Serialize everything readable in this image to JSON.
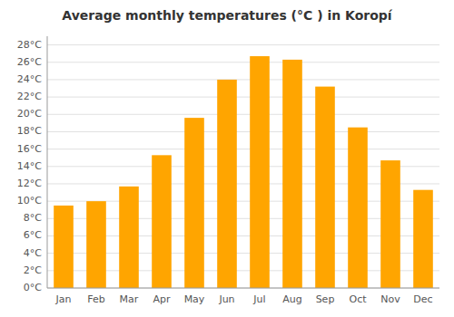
{
  "chart_data": {
    "type": "bar",
    "title": "Average monthly temperatures (°C ) in Koropí",
    "categories": [
      "Jan",
      "Feb",
      "Mar",
      "Apr",
      "May",
      "Jun",
      "Jul",
      "Aug",
      "Sep",
      "Oct",
      "Nov",
      "Dec"
    ],
    "values": [
      9.5,
      10.0,
      11.7,
      15.3,
      19.6,
      24.0,
      26.7,
      26.3,
      23.2,
      18.5,
      14.7,
      11.3
    ],
    "color": "#FFA500",
    "ylim": [
      0,
      29
    ],
    "yticks": [
      {
        "value": 0,
        "label": "0°C"
      },
      {
        "value": 2,
        "label": "2°C"
      },
      {
        "value": 4,
        "label": "4°C"
      },
      {
        "value": 6,
        "label": "6°C"
      },
      {
        "value": 8,
        "label": "8°C"
      },
      {
        "value": 10,
        "label": "10°C"
      },
      {
        "value": 12,
        "label": "12°C"
      },
      {
        "value": 14,
        "label": "14°C"
      },
      {
        "value": 16,
        "label": "16°C"
      },
      {
        "value": 18,
        "label": "18°C"
      },
      {
        "value": 20,
        "label": "20°C"
      },
      {
        "value": 22,
        "label": "22°C"
      },
      {
        "value": 24,
        "label": "24°C"
      },
      {
        "value": 26,
        "label": "26°C"
      },
      {
        "value": 28,
        "label": "28°C"
      }
    ],
    "grid": true
  }
}
